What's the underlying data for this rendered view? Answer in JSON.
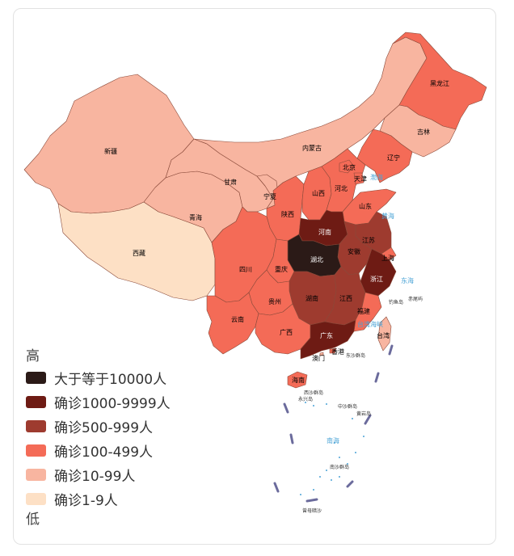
{
  "colors": {
    "level_10000": "#2b1a17",
    "level_1000": "#6e1b14",
    "level_500": "#9e3b2f",
    "level_100": "#f46b57",
    "level_10": "#f8b5a0",
    "level_1": "#fde0c5",
    "border": "#8a4a3a",
    "sea_text": "#4aa3d6",
    "dash_line": "#6b6b9c"
  },
  "legend": {
    "high_label": "高",
    "low_label": "低",
    "items": [
      {
        "label": "大于等于10000人",
        "level": "level_10000"
      },
      {
        "label": "确诊1000-9999人",
        "level": "level_1000"
      },
      {
        "label": "确诊500-999人",
        "level": "level_500"
      },
      {
        "label": "确诊100-499人",
        "level": "level_100"
      },
      {
        "label": "确诊10-99人",
        "level": "level_10"
      },
      {
        "label": "确诊1-9人",
        "level": "level_1"
      }
    ]
  },
  "provinces": {
    "xinjiang": {
      "name": "新疆",
      "level": "level_10"
    },
    "xizang": {
      "name": "西藏",
      "level": "level_1"
    },
    "qinghai": {
      "name": "青海",
      "level": "level_10"
    },
    "gansu": {
      "name": "甘肃",
      "level": "level_10"
    },
    "neimenggu": {
      "name": "内蒙古",
      "level": "level_10"
    },
    "heilongjiang": {
      "name": "黑龙江",
      "level": "level_100"
    },
    "jilin": {
      "name": "吉林",
      "level": "level_10"
    },
    "liaoning": {
      "name": "辽宁",
      "level": "level_100"
    },
    "ningxia": {
      "name": "宁夏",
      "level": "level_10"
    },
    "shaanxi": {
      "name": "陕西",
      "level": "level_100"
    },
    "shanxi": {
      "name": "山西",
      "level": "level_100"
    },
    "hebei": {
      "name": "河北",
      "level": "level_100"
    },
    "beijing": {
      "name": "北京",
      "level": "level_100"
    },
    "tianjin": {
      "name": "天津",
      "level": "level_100"
    },
    "shandong": {
      "name": "山东",
      "level": "level_100"
    },
    "henan": {
      "name": "河南",
      "level": "level_1000"
    },
    "jiangsu": {
      "name": "江苏",
      "level": "level_500"
    },
    "anhui": {
      "name": "安徽",
      "level": "level_500"
    },
    "shanghai": {
      "name": "上海",
      "level": "level_100"
    },
    "hubei": {
      "name": "湖北",
      "level": "level_10000"
    },
    "zhejiang": {
      "name": "浙江",
      "level": "level_1000"
    },
    "sichuan": {
      "name": "四川",
      "level": "level_100"
    },
    "chongqing": {
      "name": "重庆",
      "level": "level_100"
    },
    "hunan": {
      "name": "湖南",
      "level": "level_500"
    },
    "jiangxi": {
      "name": "江西",
      "level": "level_500"
    },
    "fujian": {
      "name": "福建",
      "level": "level_100"
    },
    "guizhou": {
      "name": "贵州",
      "level": "level_100"
    },
    "yunnan": {
      "name": "云南",
      "level": "level_100"
    },
    "guangxi": {
      "name": "广西",
      "level": "level_100"
    },
    "guangdong": {
      "name": "广东",
      "level": "level_1000"
    },
    "hainan": {
      "name": "海南",
      "level": "level_100"
    },
    "taiwan": {
      "name": "台湾",
      "level": "level_10"
    },
    "hongkong": {
      "name": "香港",
      "level": "level_100"
    },
    "macau": {
      "name": "澳门",
      "level": "level_10"
    }
  },
  "seas": {
    "bohai": "渤海",
    "huanghai": "黄海",
    "donghai": "东海",
    "taiwan_strait": "台湾海峡",
    "nanhai": "南海"
  },
  "islands": {
    "diaoyu": "钓鱼岛",
    "chiwei": "赤尾屿",
    "dongsha": "东沙群岛",
    "xisha": "西沙群岛",
    "yongxing": "永兴岛",
    "huangyan": "黄岩岛",
    "zhongsha": "中沙群岛",
    "nansha": "南沙群岛",
    "zengmu": "曾母暗沙"
  }
}
